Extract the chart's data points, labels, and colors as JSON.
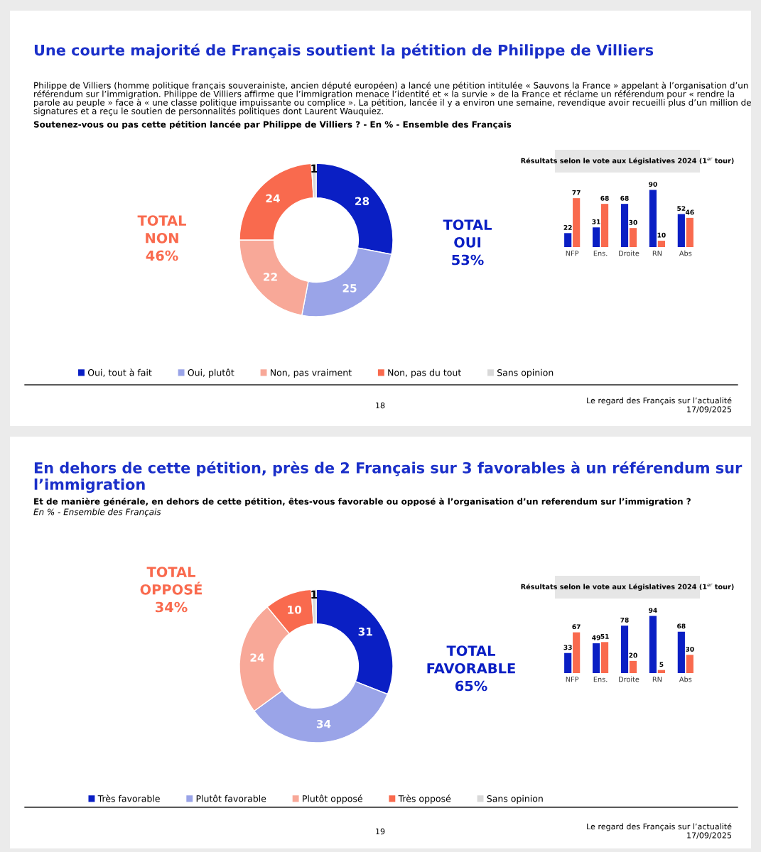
{
  "chart_data": [
    {
      "type": "donut",
      "title": "Une courte majorité de Français soutient la pétition de Philippe de Villiers",
      "subtitle": "Philippe de Villiers (homme politique français souverainiste, ancien député européen) a lancé une pétition intitulée « Sauvons la France » appelant à l’organisation d’un référendum sur l’immigration. Philippe de Villiers affirme que l’immigration menace l’identité et « la survie » de la France et réclame un référendum pour « rendre la parole au peuple » face à « une classe politique impuissante ou complice ». La pétition, lancée il y a environ une semaine, revendique avoir recueilli plus d’un million de signatures et a reçu le soutien de personnalités politiques dont Laurent Wauquiez.",
      "categories": [
        "Oui, tout à fait",
        "Oui, plutôt",
        "Non, pas vraiment",
        "Non, pas du tout",
        "Sans opinion"
      ],
      "values": [
        28,
        25,
        22,
        24,
        1
      ],
      "colors": [
        "#0a1fc4",
        "#9aa4e8",
        "#f8a898",
        "#f96a4e",
        "#d9d9d9"
      ],
      "data_labels": true,
      "legend": "bottom",
      "annotations": [
        "Soutenez-vous ou pas cette pétition lancée par Philippe de Villiers ? - En % - Ensemble des Français",
        "TOTAL\nNON\n46%",
        "TOTAL\nOUI\n53%",
        "18",
        "Le regard des Français sur l’actualité\n17/09/2025"
      ]
    },
    {
      "type": "bar",
      "title": "Résultats selon le vote aux Législatives 2024 (1$^{er}$ tour)",
      "categories": [
        "NFP",
        "Ens.",
        "Droite",
        "RN",
        "Abs"
      ],
      "series": [
        {
          "color": "#0a1fc4",
          "values": [
            22,
            31,
            68,
            90,
            52
          ]
        },
        {
          "color": "#f96a4e",
          "values": [
            77,
            68,
            30,
            10,
            46
          ]
        }
      ],
      "data_labels": true
    },
    {
      "type": "donut",
      "title": "En dehors de cette pétition, près de 2 Français sur 3 favorables à un référendum sur l’immigration",
      "subtitle": "Et de manière générale, en dehors de cette pétition, êtes-vous favorable ou opposé à l’organisation d’un referendum sur l’immigration ?",
      "categories": [
        "Très favorable",
        "Plutôt favorable",
        "Plutôt opposé",
        "Très opposé",
        "Sans opinion"
      ],
      "values": [
        31,
        34,
        24,
        10,
        1
      ],
      "colors": [
        "#0a1fc4",
        "#9aa4e8",
        "#f8a898",
        "#f96a4e",
        "#d9d9d9"
      ],
      "data_labels": true,
      "legend": "bottom",
      "annotations": [
        "En % - Ensemble des Français",
        "TOTAL\nOPPOSÉ\n34%",
        "TOTAL\nFAVORABLE\n65%",
        "19",
        "Le regard des Français sur l’actualité\n17/09/2025"
      ]
    },
    {
      "type": "bar",
      "title": "Résultats selon le vote aux Législatives 2024 (1$^{er}$ tour)",
      "categories": [
        "NFP",
        "Ens.",
        "Droite",
        "RN",
        "Abs"
      ],
      "series": [
        {
          "color": "#0a1fc4",
          "values": [
            33,
            49,
            78,
            94,
            68
          ]
        },
        {
          "color": "#f96a4e",
          "values": [
            67,
            51,
            20,
            5,
            30
          ]
        }
      ],
      "data_labels": true
    }
  ]
}
